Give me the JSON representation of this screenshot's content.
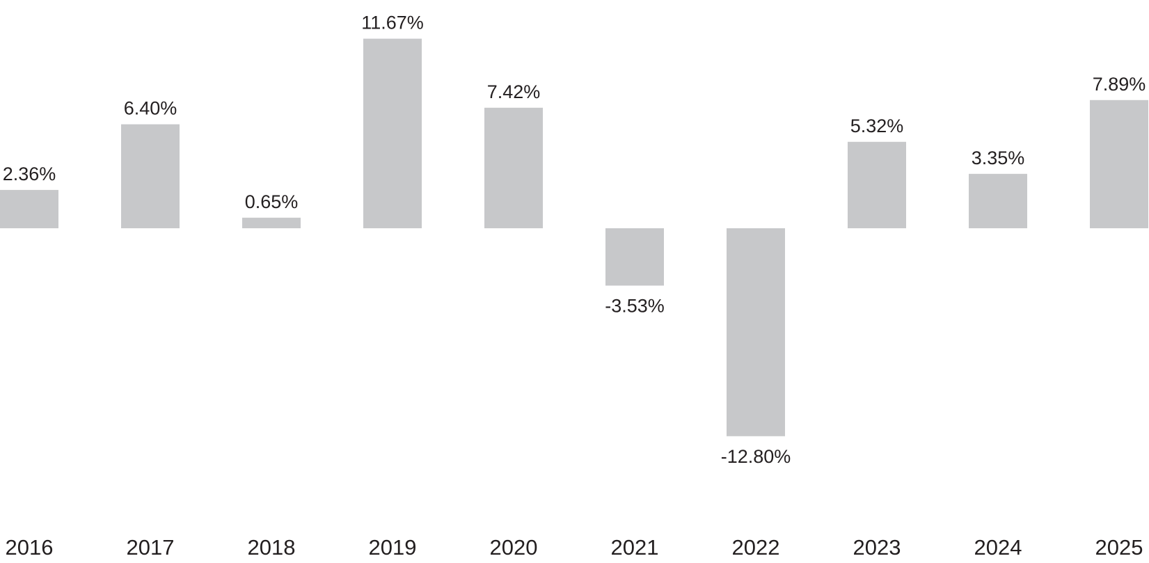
{
  "chart_data": {
    "type": "bar",
    "categories": [
      "2016",
      "2017",
      "2018",
      "2019",
      "2020",
      "2021",
      "2022",
      "2023",
      "2024",
      "2025"
    ],
    "values": [
      2.36,
      6.4,
      0.65,
      11.67,
      7.42,
      -3.53,
      -12.8,
      5.32,
      3.35,
      7.89
    ],
    "data_labels": [
      "2.36%",
      "6.40%",
      "0.65%",
      "11.67%",
      "7.42%",
      "-3.53%",
      "-12.80%",
      "5.32%",
      "3.35%",
      "7.89%"
    ],
    "unit": "%",
    "bar_color": "#c7c8ca",
    "text_color": "#231f20",
    "grid": false,
    "legend": "none",
    "ylim": [
      -13.5,
      12.5
    ]
  }
}
